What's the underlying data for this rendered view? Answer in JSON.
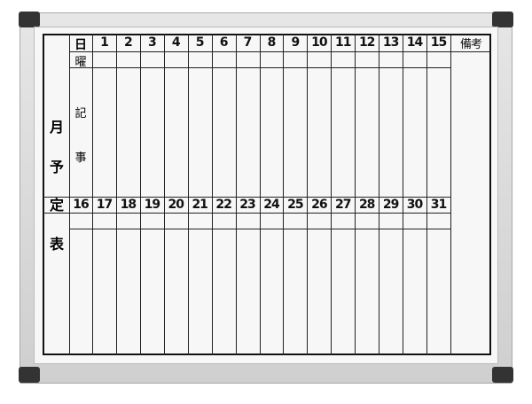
{
  "board": {
    "title_chars": [
      "月",
      "予",
      "定",
      "表"
    ],
    "day_label": "日",
    "weekday_label": "曜",
    "notes_label_chars": [
      "記",
      "事"
    ],
    "remarks_label": "備考",
    "first_half_days": [
      "1",
      "2",
      "3",
      "4",
      "5",
      "6",
      "7",
      "8",
      "9",
      "10",
      "11",
      "12",
      "13",
      "14",
      "15"
    ],
    "second_half_days": [
      "16",
      "17",
      "18",
      "19",
      "20",
      "21",
      "22",
      "23",
      "24",
      "25",
      "26",
      "27",
      "28",
      "29",
      "30",
      "31"
    ]
  },
  "colors": {
    "frame": "#d4d4d4",
    "corner": "#333333",
    "board": "#f7f7f7",
    "lines": "#111111"
  }
}
